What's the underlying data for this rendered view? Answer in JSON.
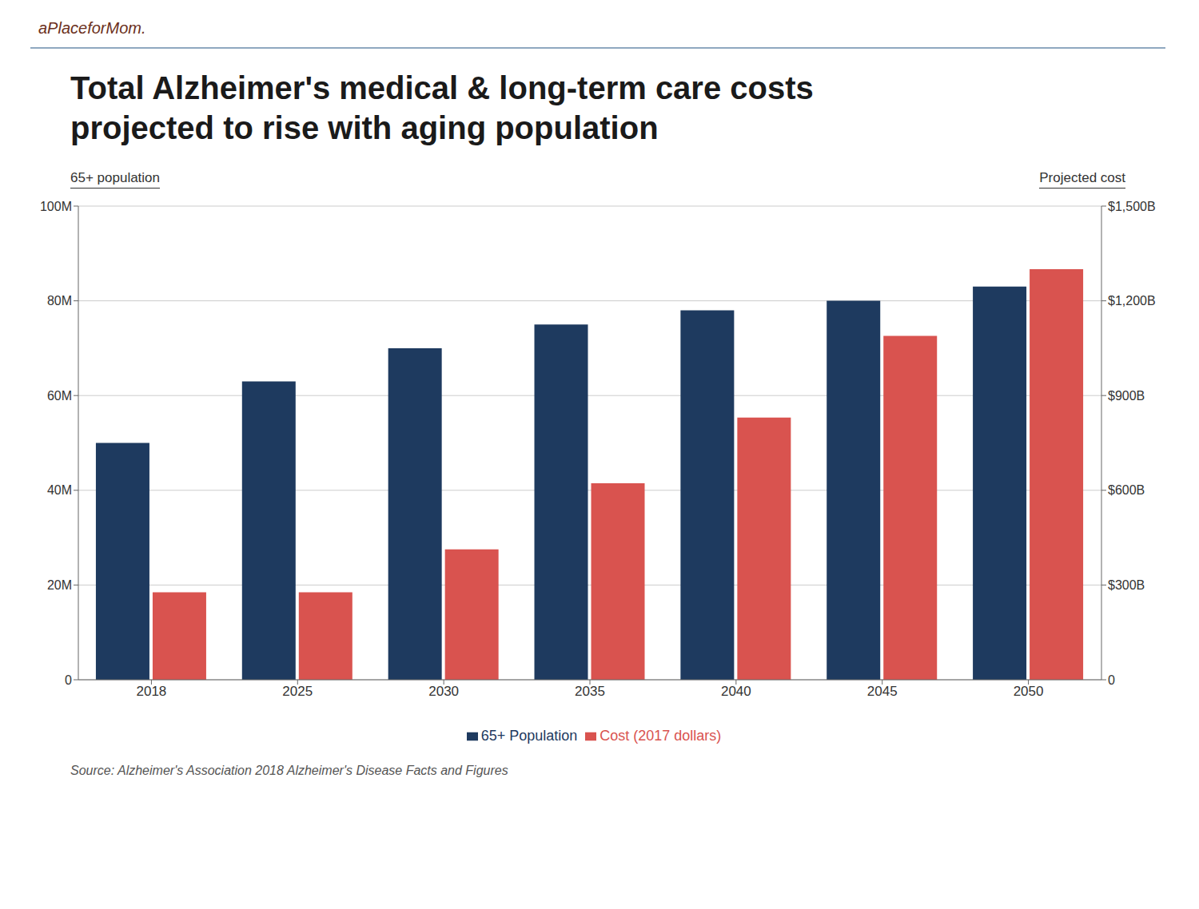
{
  "chart_data": {
    "type": "bar",
    "title": "Total Alzheimer's medical & long-term care costs",
    "subtitle": "projected to rise with aging population",
    "categories": [
      "2018",
      "2025",
      "2030",
      "2035",
      "2040",
      "2045",
      "2050"
    ],
    "series": [
      {
        "name": "65+ Population",
        "color": "#1e3a5f",
        "values": [
          50,
          63,
          70,
          75,
          78,
          80,
          83
        ]
      },
      {
        "name": "Cost (2017 dollars)",
        "color": "#d9534f",
        "values": [
          277,
          277,
          413,
          622,
          830,
          1089,
          1300
        ],
        "axis": "y2"
      }
    ],
    "ylabel": "65+ population",
    "y2label": "Projected cost",
    "ylim": [
      0,
      100
    ],
    "yticks": [
      0,
      {
        "value": 20,
        "label": "20M"
      },
      {
        "value": 40,
        "label": "40M"
      },
      {
        "value": 60,
        "label": "60M"
      },
      {
        "value": 80,
        "label": "80M"
      },
      {
        "value": 100,
        "label": "100M"
      }
    ],
    "y2lim": [
      0,
      1500
    ],
    "y2ticks": [
      0,
      {
        "value": 300,
        "label": "$300B"
      },
      {
        "value": 600,
        "label": "$600B"
      },
      {
        "value": 900,
        "label": "$900B"
      },
      {
        "value": 1200,
        "label": "$1,200B"
      },
      {
        "value": 1500,
        "label": "$1,500B"
      }
    ],
    "grid": true,
    "legend": "bottom",
    "annotations": [
      "aPlaceforMom.",
      "Source:  Alzheimer's Association  2018 Alzheimer's Disease Facts and Figures"
    ]
  }
}
